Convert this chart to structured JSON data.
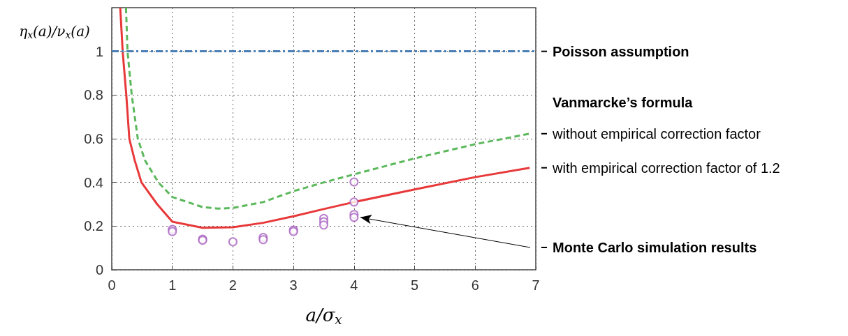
{
  "chart_data": {
    "type": "line",
    "xlabel": "a/σ$_{x}$",
    "ylabel": "η$_{x}$(a)/ν$_{x}$(a)",
    "xlim": [
      0,
      7
    ],
    "xticks": [
      0,
      1,
      2,
      3,
      4,
      5,
      6,
      7
    ],
    "ylim": [
      0,
      1.2
    ],
    "yticks": [
      0,
      0.2,
      0.4,
      0.6,
      0.8,
      1
    ],
    "grid": true,
    "ref_lines": [
      {
        "axis": "y",
        "value": 1,
        "label": "Poisson assumption",
        "color": "#4a7fb5",
        "line_style": "dashdot"
      }
    ],
    "annotations": [
      "Vanmarcke’s formula"
    ],
    "series": [
      {
        "name": "without empirical correction factor",
        "color": "#5cb85c",
        "line_style": "dashed",
        "x": [
          0.235,
          0.26,
          0.33,
          0.43,
          0.55,
          0.77,
          1,
          1.5,
          1.75,
          2,
          2.5,
          3,
          3.5,
          4,
          5,
          6,
          6.9
        ],
        "values": [
          1.2,
          1.0,
          0.8,
          0.6,
          0.5,
          0.4,
          0.333,
          0.287,
          0.28,
          0.283,
          0.31,
          0.36,
          0.4,
          0.437,
          0.51,
          0.575,
          0.623
        ]
      },
      {
        "name": "with empirical correction factor of 1.2",
        "color": "#e8393a",
        "line_style": "solid",
        "x": [
          0.14,
          0.18,
          0.24,
          0.29,
          0.38,
          0.49,
          0.75,
          1,
          1.5,
          2,
          2.5,
          3,
          3.5,
          4,
          5,
          6,
          6.9
        ],
        "values": [
          1.2,
          1.0,
          0.8,
          0.6,
          0.5,
          0.4,
          0.3,
          0.22,
          0.192,
          0.195,
          0.215,
          0.245,
          0.278,
          0.31,
          0.368,
          0.424,
          0.467
        ]
      },
      {
        "type": "scatter",
        "name": "Monte Carlo simulation results",
        "color": "#a860c0",
        "marker": "circle",
        "x": [
          1,
          1,
          1.5,
          1.5,
          2,
          2.5,
          2.5,
          3,
          3,
          3.5,
          3.5,
          3.5,
          4,
          4,
          4,
          4
        ],
        "values": [
          0.185,
          0.175,
          0.14,
          0.135,
          0.128,
          0.148,
          0.138,
          0.182,
          0.175,
          0.235,
          0.22,
          0.205,
          0.402,
          0.31,
          0.253,
          0.24
        ]
      }
    ]
  }
}
